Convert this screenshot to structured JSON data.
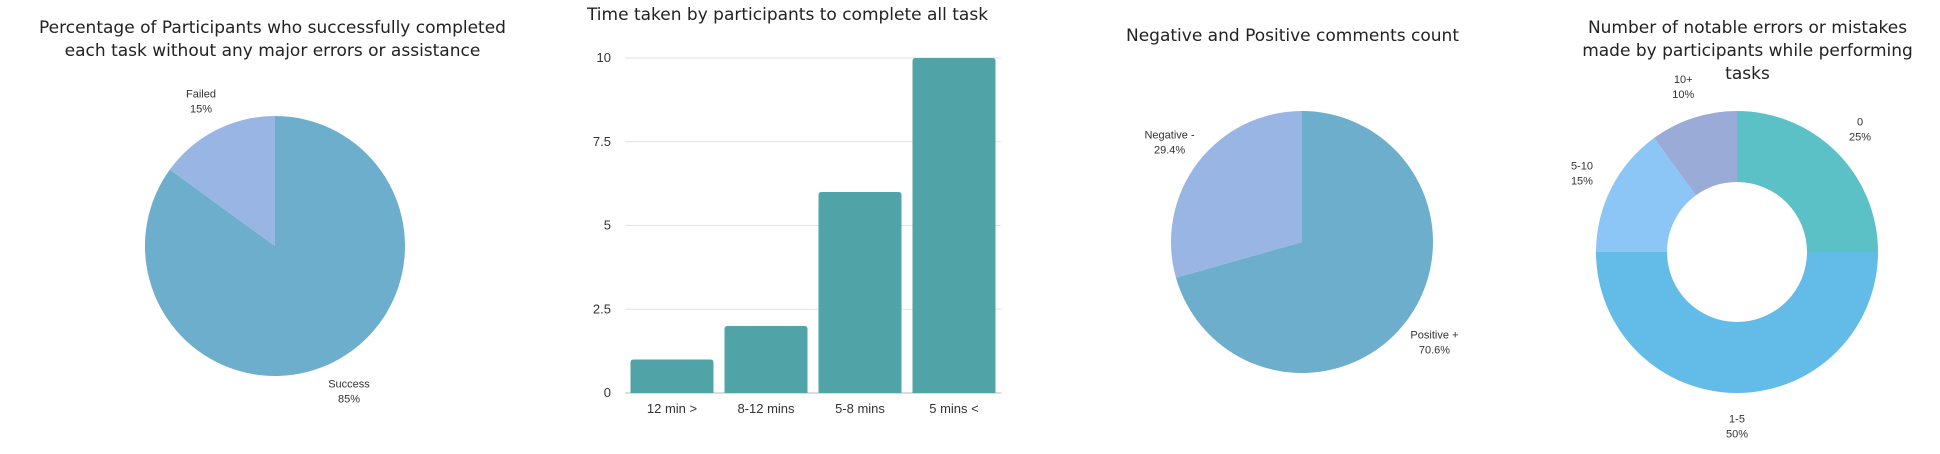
{
  "chart_data": [
    {
      "type": "pie",
      "title": "Percentage of Participants who successfully completed each task without any major errors or assistance",
      "slices": [
        {
          "label": "Success",
          "value": 85,
          "value_label": "85%",
          "color": "#6daecd"
        },
        {
          "label": "Failed",
          "value": 15,
          "value_label": "15%",
          "color": "#98b5e3"
        }
      ]
    },
    {
      "type": "bar",
      "title": "Time taken by participants to complete all task",
      "categories": [
        "12 min >",
        "8-12 mins",
        "5-8 mins",
        "5 mins <"
      ],
      "values": [
        1,
        2,
        6,
        10
      ],
      "ylim": [
        0,
        10
      ],
      "yticks": [
        "0",
        "2.5",
        "5",
        "7.5",
        "10"
      ],
      "grid": true,
      "color": "#50a3a6"
    },
    {
      "type": "pie",
      "title": "Negative and Positive comments count",
      "slices": [
        {
          "label": "Positive +",
          "value": 70.6,
          "value_label": "70.6%",
          "color": "#6daecd"
        },
        {
          "label": "Negative -",
          "value": 29.4,
          "value_label": "29.4%",
          "color": "#98b5e3"
        }
      ]
    },
    {
      "type": "pie",
      "subtype": "donut",
      "title": "Number of notable errors or mistakes made by participants while performing tasks",
      "slices": [
        {
          "label": "0",
          "value": 25,
          "value_label": "25%",
          "color": "#5bc1c7"
        },
        {
          "label": "1-5",
          "value": 50,
          "value_label": "50%",
          "color": "#63bbe8"
        },
        {
          "label": "5-10",
          "value": 15,
          "value_label": "15%",
          "color": "#8cc6f7"
        },
        {
          "label": "10+",
          "value": 10,
          "value_label": "10%",
          "color": "#9aabd8"
        }
      ]
    }
  ]
}
